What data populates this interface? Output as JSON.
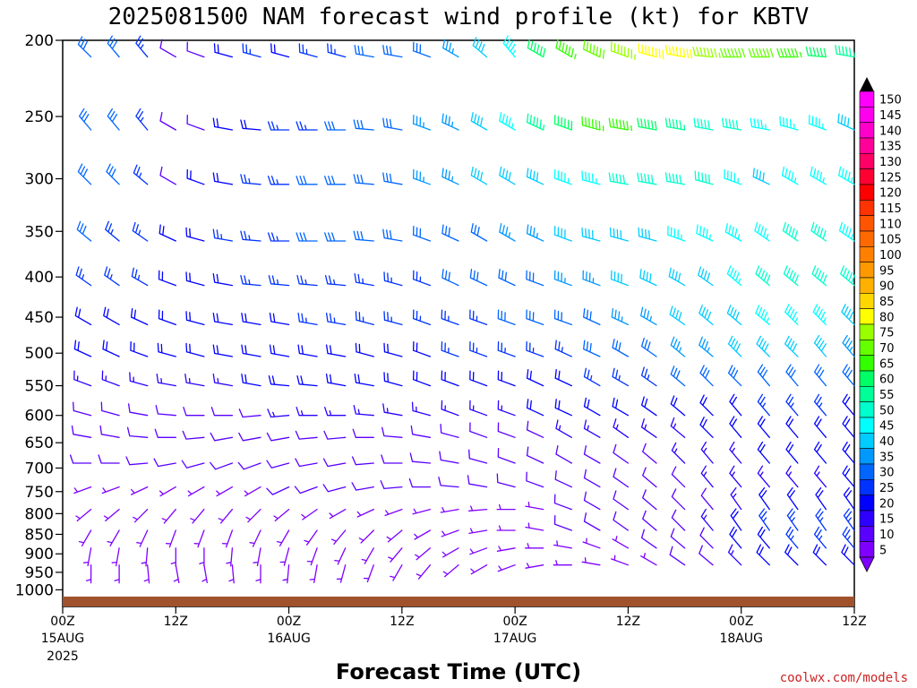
{
  "title": "2025081500 NAM forecast wind profile (kt) for KBTV",
  "credit": "coolwx.com/models",
  "colors": {
    "ground": "#a0522d",
    "credit": "#cc2222"
  },
  "chart_data": {
    "type": "wind-barb time-height",
    "title": "2025081500 NAM forecast wind profile (kt) for KBTV",
    "xlabel": "Forecast Time (UTC)",
    "ylabel": "",
    "pressure_levels": [
      200,
      250,
      300,
      350,
      400,
      450,
      500,
      550,
      600,
      650,
      700,
      750,
      800,
      850,
      900,
      950,
      1000
    ],
    "y_scale": "log-pressure",
    "ylim": [
      1050,
      200
    ],
    "xlim_hours": [
      0,
      84
    ],
    "x_ticks": [
      {
        "label": "00Z",
        "date": "15AUG",
        "year": "2025",
        "hour": 0
      },
      {
        "label": "12Z",
        "date": "",
        "year": "",
        "hour": 12
      },
      {
        "label": "00Z",
        "date": "16AUG",
        "year": "",
        "hour": 24
      },
      {
        "label": "12Z",
        "date": "",
        "year": "",
        "hour": 36
      },
      {
        "label": "00Z",
        "date": "17AUG",
        "year": "",
        "hour": 48
      },
      {
        "label": "12Z",
        "date": "",
        "year": "",
        "hour": 60
      },
      {
        "label": "00Z",
        "date": "18AUG",
        "year": "",
        "hour": 72
      },
      {
        "label": "12Z",
        "date": "",
        "year": "",
        "hour": 84
      }
    ],
    "barb_times_hours": [
      3,
      6,
      9,
      12,
      15,
      18,
      21,
      24,
      27,
      30,
      33,
      36,
      39,
      42,
      45,
      48,
      51,
      54,
      57,
      60,
      63,
      66,
      69,
      72,
      75,
      78,
      81,
      84
    ],
    "speed_scale": [
      {
        "v": 5,
        "c": "#7f00ff"
      },
      {
        "v": 10,
        "c": "#5a00ff"
      },
      {
        "v": 15,
        "c": "#2d00ff"
      },
      {
        "v": 20,
        "c": "#0000ff"
      },
      {
        "v": 25,
        "c": "#0033ff"
      },
      {
        "v": 30,
        "c": "#0066ff"
      },
      {
        "v": 35,
        "c": "#0099ff"
      },
      {
        "v": 40,
        "c": "#00ccff"
      },
      {
        "v": 45,
        "c": "#00ffff"
      },
      {
        "v": 50,
        "c": "#00ffcc"
      },
      {
        "v": 55,
        "c": "#00ff99"
      },
      {
        "v": 60,
        "c": "#00ff66"
      },
      {
        "v": 65,
        "c": "#33ff00"
      },
      {
        "v": 70,
        "c": "#66ff00"
      },
      {
        "v": 75,
        "c": "#99ff00"
      },
      {
        "v": 80,
        "c": "#ffff00"
      },
      {
        "v": 85,
        "c": "#ffd700"
      },
      {
        "v": 90,
        "c": "#ffb000"
      },
      {
        "v": 95,
        "c": "#ff9900"
      },
      {
        "v": 100,
        "c": "#ff8000"
      },
      {
        "v": 105,
        "c": "#ff6a00"
      },
      {
        "v": 110,
        "c": "#ff5500"
      },
      {
        "v": 115,
        "c": "#ff3300"
      },
      {
        "v": 120,
        "c": "#ff0000"
      },
      {
        "v": 125,
        "c": "#ff0033"
      },
      {
        "v": 130,
        "c": "#ff0066"
      },
      {
        "v": 135,
        "c": "#ff0099"
      },
      {
        "v": 140,
        "c": "#ff00cc"
      },
      {
        "v": 145,
        "c": "#ff00ee"
      },
      {
        "v": 150,
        "c": "#ff00ff"
      }
    ],
    "barb_levels": [
      210,
      260,
      305,
      360,
      410,
      460,
      505,
      550,
      600,
      640,
      690,
      740,
      790,
      840,
      885,
      930
    ],
    "speed_kt": [
      [
        30,
        28,
        26,
        10,
        10,
        20,
        25,
        22,
        24,
        26,
        28,
        28,
        32,
        36,
        40,
        45,
        60,
        65,
        68,
        75,
        78,
        80,
        75,
        70,
        68,
        65,
        60,
        55
      ],
      [
        30,
        28,
        26,
        10,
        12,
        18,
        22,
        24,
        26,
        28,
        30,
        32,
        34,
        36,
        38,
        45,
        55,
        60,
        65,
        65,
        60,
        55,
        50,
        48,
        45,
        45,
        45,
        40
      ],
      [
        30,
        28,
        26,
        10,
        18,
        22,
        24,
        26,
        28,
        30,
        30,
        32,
        34,
        35,
        38,
        40,
        42,
        45,
        45,
        48,
        50,
        50,
        48,
        45,
        42,
        45,
        45,
        45
      ],
      [
        28,
        26,
        24,
        18,
        22,
        24,
        26,
        26,
        28,
        28,
        28,
        30,
        30,
        32,
        32,
        34,
        36,
        38,
        40,
        42,
        42,
        44,
        45,
        45,
        45,
        48,
        48,
        45
      ],
      [
        25,
        25,
        25,
        20,
        22,
        22,
        24,
        24,
        24,
        26,
        26,
        26,
        26,
        28,
        28,
        30,
        32,
        34,
        36,
        38,
        40,
        40,
        42,
        45,
        48,
        50,
        50,
        48
      ],
      [
        22,
        22,
        22,
        20,
        20,
        22,
        22,
        22,
        24,
        24,
        24,
        24,
        24,
        26,
        26,
        28,
        28,
        30,
        32,
        34,
        36,
        38,
        40,
        42,
        45,
        45,
        45,
        42
      ],
      [
        20,
        20,
        20,
        18,
        18,
        20,
        20,
        20,
        22,
        22,
        22,
        22,
        22,
        24,
        24,
        24,
        26,
        26,
        28,
        30,
        32,
        34,
        36,
        38,
        40,
        40,
        38,
        36
      ],
      [
        15,
        15,
        15,
        15,
        15,
        15,
        18,
        18,
        18,
        18,
        18,
        20,
        20,
        20,
        22,
        22,
        22,
        22,
        24,
        24,
        26,
        28,
        30,
        30,
        32,
        32,
        30,
        30
      ],
      [
        12,
        12,
        12,
        12,
        12,
        12,
        12,
        15,
        15,
        15,
        15,
        15,
        15,
        15,
        15,
        15,
        18,
        18,
        18,
        18,
        20,
        20,
        22,
        22,
        24,
        24,
        24,
        22
      ],
      [
        10,
        10,
        10,
        10,
        10,
        10,
        10,
        10,
        12,
        12,
        12,
        12,
        12,
        12,
        12,
        12,
        12,
        14,
        14,
        14,
        15,
        16,
        18,
        18,
        20,
        20,
        20,
        20
      ],
      [
        8,
        8,
        8,
        8,
        8,
        8,
        8,
        10,
        10,
        10,
        10,
        10,
        10,
        10,
        10,
        10,
        10,
        12,
        12,
        12,
        12,
        14,
        15,
        16,
        18,
        18,
        18,
        18
      ],
      [
        6,
        6,
        6,
        6,
        6,
        6,
        6,
        8,
        8,
        8,
        8,
        8,
        8,
        8,
        8,
        8,
        8,
        10,
        10,
        10,
        10,
        12,
        14,
        15,
        16,
        16,
        16,
        18
      ],
      [
        6,
        6,
        5,
        5,
        5,
        5,
        5,
        5,
        6,
        6,
        6,
        6,
        6,
        6,
        6,
        6,
        6,
        8,
        8,
        8,
        8,
        10,
        12,
        15,
        18,
        20,
        22,
        22
      ],
      [
        6,
        6,
        5,
        5,
        5,
        5,
        5,
        5,
        6,
        6,
        6,
        6,
        6,
        6,
        6,
        6,
        6,
        8,
        8,
        8,
        10,
        12,
        15,
        20,
        24,
        26,
        26,
        25
      ],
      [
        6,
        5,
        5,
        5,
        5,
        5,
        5,
        5,
        5,
        5,
        5,
        5,
        5,
        5,
        5,
        5,
        5,
        5,
        6,
        6,
        8,
        10,
        12,
        18,
        22,
        26,
        25,
        24
      ],
      [
        5,
        5,
        5,
        5,
        5,
        5,
        5,
        5,
        5,
        5,
        5,
        5,
        5,
        5,
        5,
        5,
        5,
        5,
        5,
        5,
        6,
        8,
        10,
        15,
        18,
        22,
        22,
        20
      ]
    ],
    "direction_deg": [
      [
        315,
        320,
        320,
        300,
        290,
        285,
        285,
        285,
        285,
        285,
        280,
        280,
        290,
        300,
        310,
        320,
        300,
        300,
        295,
        290,
        285,
        280,
        275,
        270,
        270,
        270,
        275,
        280
      ],
      [
        320,
        320,
        320,
        300,
        290,
        280,
        275,
        270,
        270,
        270,
        275,
        280,
        290,
        295,
        300,
        300,
        295,
        290,
        285,
        280,
        280,
        280,
        280,
        280,
        280,
        285,
        290,
        295
      ],
      [
        315,
        315,
        310,
        300,
        290,
        280,
        275,
        270,
        270,
        270,
        275,
        280,
        290,
        295,
        300,
        300,
        295,
        290,
        285,
        280,
        280,
        280,
        285,
        290,
        295,
        300,
        300,
        300
      ],
      [
        310,
        310,
        305,
        295,
        285,
        280,
        275,
        270,
        270,
        270,
        275,
        280,
        290,
        295,
        300,
        300,
        295,
        290,
        285,
        285,
        285,
        290,
        295,
        300,
        305,
        305,
        305,
        305
      ],
      [
        305,
        305,
        300,
        290,
        285,
        280,
        275,
        275,
        275,
        275,
        280,
        285,
        290,
        295,
        295,
        295,
        290,
        290,
        290,
        290,
        295,
        300,
        305,
        310,
        310,
        310,
        310,
        310
      ],
      [
        300,
        300,
        295,
        290,
        285,
        280,
        280,
        280,
        280,
        280,
        285,
        285,
        290,
        290,
        290,
        290,
        290,
        290,
        295,
        295,
        300,
        305,
        310,
        310,
        310,
        315,
        315,
        315
      ],
      [
        295,
        295,
        290,
        285,
        285,
        280,
        280,
        280,
        280,
        280,
        285,
        285,
        290,
        290,
        290,
        290,
        290,
        295,
        295,
        300,
        305,
        310,
        310,
        315,
        315,
        315,
        320,
        320
      ],
      [
        290,
        290,
        285,
        280,
        280,
        280,
        280,
        275,
        275,
        280,
        280,
        285,
        290,
        290,
        290,
        290,
        295,
        295,
        300,
        300,
        305,
        310,
        315,
        315,
        320,
        320,
        320,
        320
      ],
      [
        285,
        285,
        280,
        275,
        270,
        270,
        265,
        265,
        270,
        270,
        275,
        280,
        285,
        290,
        290,
        290,
        295,
        295,
        300,
        300,
        305,
        310,
        315,
        320,
        320,
        320,
        320,
        320
      ],
      [
        280,
        280,
        275,
        270,
        265,
        260,
        260,
        260,
        265,
        265,
        270,
        275,
        280,
        285,
        290,
        290,
        295,
        300,
        300,
        305,
        305,
        310,
        315,
        320,
        320,
        320,
        320,
        320
      ],
      [
        270,
        270,
        265,
        260,
        255,
        250,
        250,
        255,
        260,
        260,
        265,
        270,
        275,
        280,
        285,
        290,
        295,
        300,
        300,
        305,
        310,
        315,
        320,
        320,
        320,
        320,
        320,
        320
      ],
      [
        250,
        250,
        245,
        240,
        240,
        240,
        240,
        245,
        250,
        255,
        260,
        265,
        270,
        275,
        280,
        285,
        290,
        295,
        300,
        305,
        310,
        315,
        320,
        320,
        320,
        320,
        320,
        320
      ],
      [
        230,
        230,
        225,
        220,
        220,
        220,
        225,
        230,
        235,
        240,
        245,
        250,
        255,
        260,
        265,
        270,
        280,
        290,
        300,
        305,
        310,
        315,
        320,
        325,
        325,
        325,
        325,
        325
      ],
      [
        210,
        210,
        205,
        200,
        200,
        200,
        205,
        210,
        215,
        220,
        225,
        230,
        240,
        250,
        260,
        270,
        280,
        290,
        300,
        305,
        310,
        315,
        320,
        325,
        325,
        325,
        325,
        325
      ],
      [
        190,
        190,
        185,
        180,
        180,
        185,
        190,
        195,
        200,
        205,
        210,
        220,
        230,
        240,
        250,
        260,
        270,
        280,
        290,
        300,
        305,
        310,
        315,
        320,
        320,
        320,
        320,
        320
      ],
      [
        180,
        180,
        175,
        170,
        170,
        175,
        180,
        185,
        190,
        195,
        200,
        210,
        220,
        230,
        240,
        250,
        260,
        270,
        280,
        290,
        300,
        305,
        310,
        315,
        315,
        315,
        315,
        315
      ]
    ],
    "colorbar_labels": [
      "150",
      "145",
      "140",
      "135",
      "130",
      "125",
      "120",
      "115",
      "110",
      "105",
      "100",
      "95",
      "90",
      "85",
      "80",
      "75",
      "70",
      "65",
      "60",
      "55",
      "50",
      "45",
      "40",
      "35",
      "30",
      "25",
      "20",
      "15",
      "10",
      "5"
    ]
  }
}
